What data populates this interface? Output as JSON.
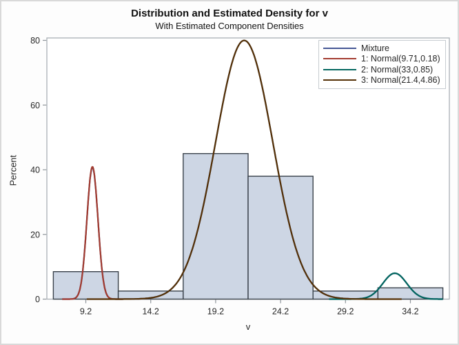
{
  "chart_data": {
    "type": "histogram_with_density_curves",
    "title": "Distribution and Estimated Density for v",
    "subtitle": "With Estimated Component Densities",
    "xlabel": "v",
    "ylabel": "Percent",
    "xlim": [
      6.2,
      37.2
    ],
    "ylim": [
      0,
      80
    ],
    "grid": false,
    "legend_position": "top-right-inside",
    "x_tick_values": [
      9.2,
      14.2,
      19.2,
      24.2,
      29.2,
      34.2
    ],
    "x_tick_labels": [
      "9.2",
      "14.2",
      "19.2",
      "24.2",
      "29.2",
      "34.2"
    ],
    "y_tick_values": [
      0,
      20,
      40,
      60,
      80
    ],
    "y_tick_labels": [
      "0",
      "20",
      "40",
      "60",
      "80"
    ],
    "histogram": {
      "bin_width": 5,
      "bin_centers": [
        9.2,
        14.2,
        19.2,
        24.2,
        29.2,
        34.2
      ],
      "percents": [
        8.5,
        2.5,
        45,
        38,
        2.5,
        3.5
      ],
      "fill": "#CDD6E4",
      "outline": "#384049"
    },
    "series": [
      {
        "name": "Mixture",
        "role": "mixture",
        "color": "#445694"
      },
      {
        "name": "1: Normal(9.71,0.18)",
        "role": "component",
        "color": "#A23A2E",
        "mean": 9.71,
        "variance": 0.18,
        "weight": 0.087,
        "peak_percent": 41
      },
      {
        "name": "2: Normal(33,0.85)",
        "role": "component",
        "color": "#01665E",
        "mean": 33,
        "variance": 0.85,
        "weight": 0.037,
        "peak_percent": 8
      },
      {
        "name": "3: Normal(21.4,4.86)",
        "role": "component",
        "color": "#543005",
        "mean": 21.4,
        "variance": 4.86,
        "weight": 0.884,
        "peak_percent": 80
      }
    ]
  },
  "frame": {
    "border_color": "#A9AFB5",
    "tick_color": "#8D9499",
    "text_color": "#262626",
    "plot_background": "#FFFFFF"
  }
}
